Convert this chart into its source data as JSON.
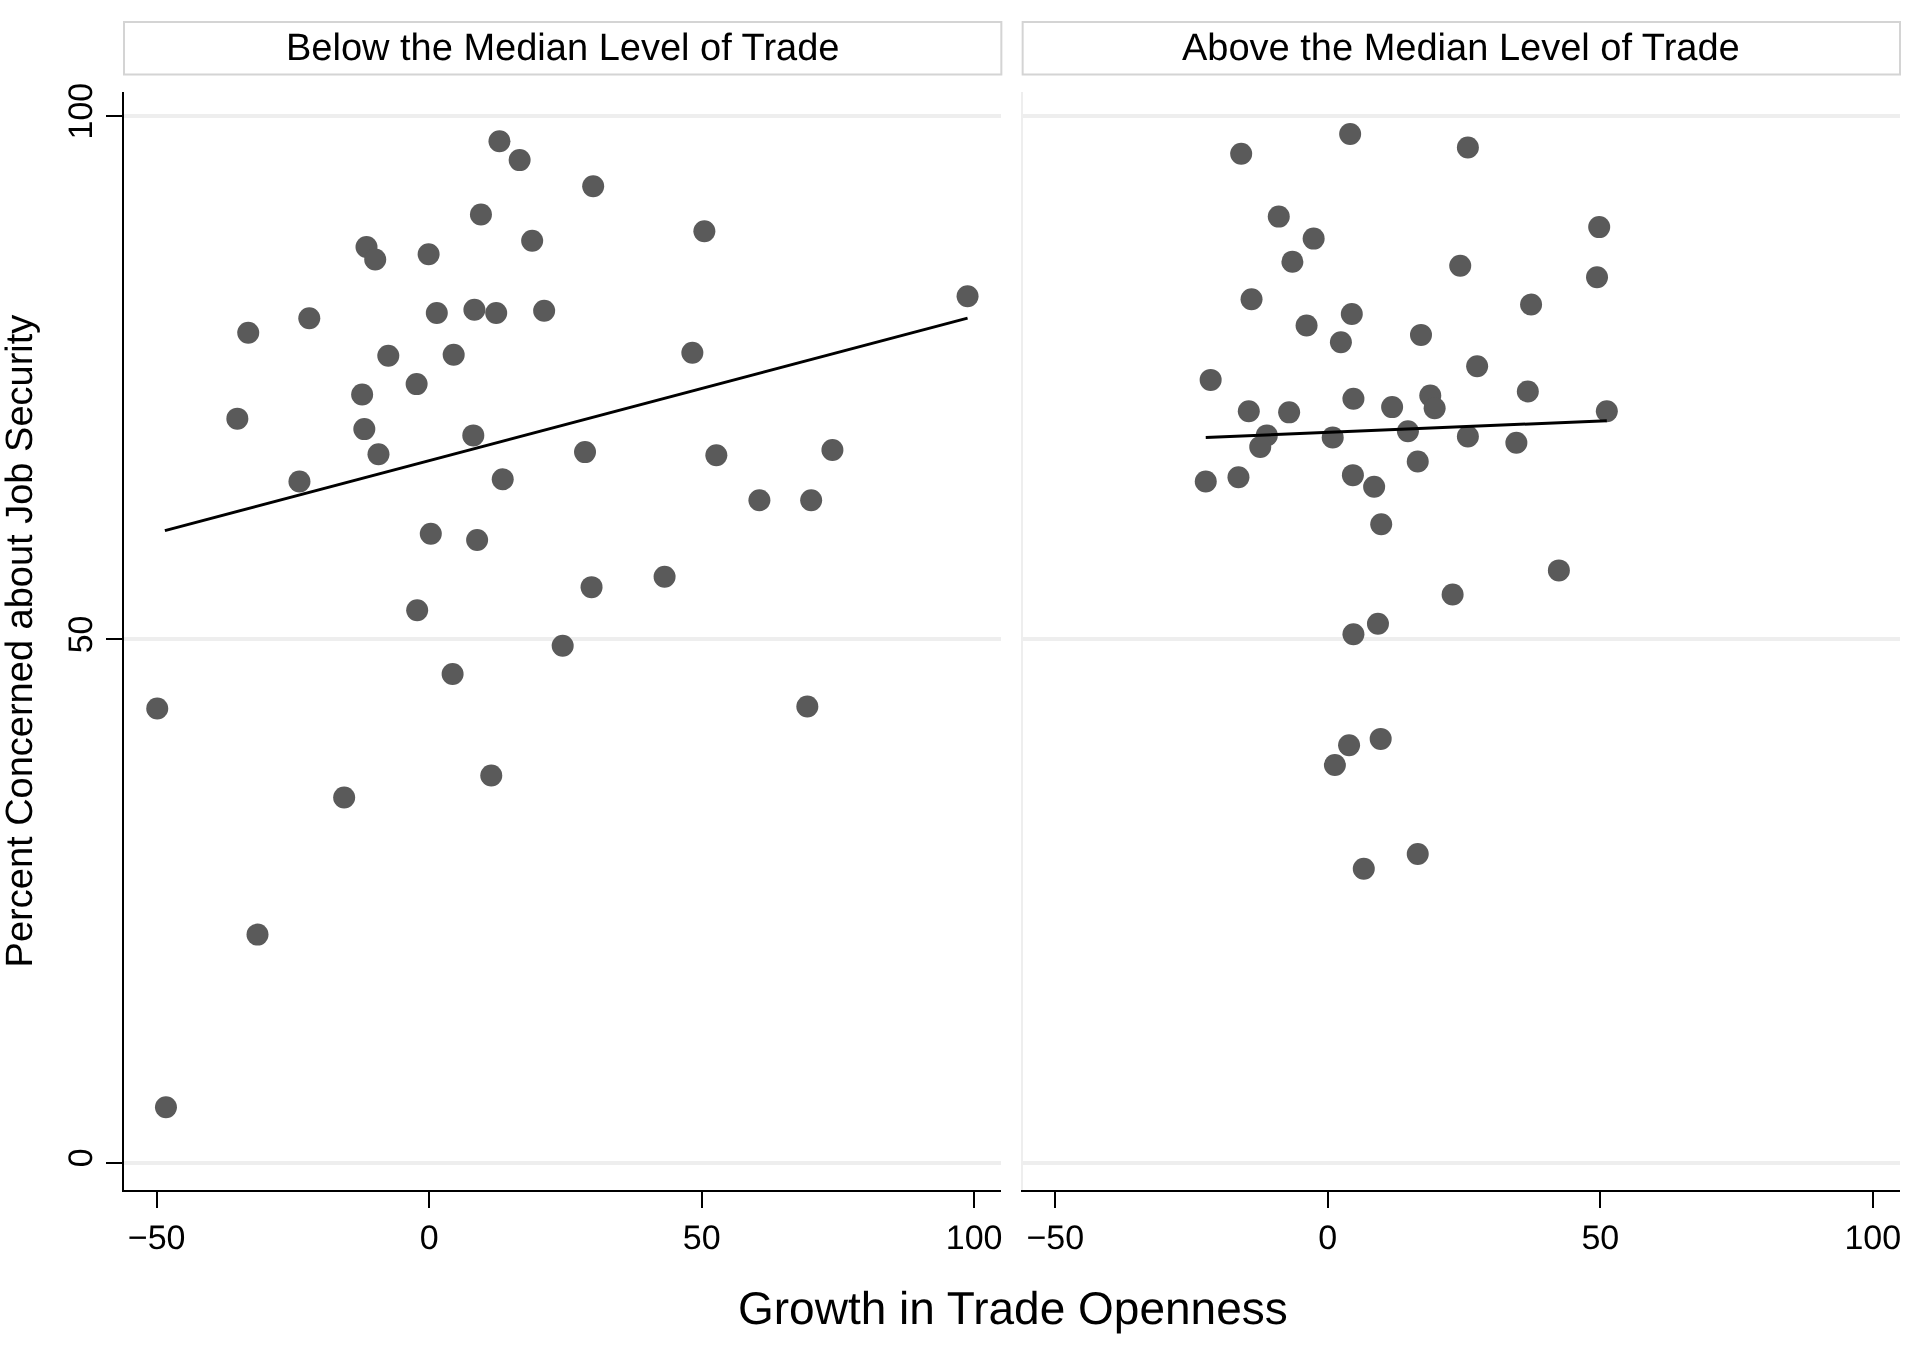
{
  "chart_data": [
    {
      "type": "scatter",
      "title": "Below the Median Level of Trade",
      "xlabel": "Growth in Trade Openness",
      "ylabel": "Percent Concerned about Job Security",
      "xlim": [
        -56,
        105
      ],
      "xticks": [
        -50,
        0,
        50,
        100
      ],
      "ylim": [
        -2.6,
        102.3
      ],
      "yticks": [
        0,
        50,
        100
      ],
      "grid": "y",
      "series": [
        {
          "color": "#5a5a5a",
          "marker": "circle",
          "x": [
            12.9,
            16.6,
            30.1,
            9.5,
            50.5,
            -11.5,
            -9.9,
            -0.1,
            18.9,
            98.8,
            -22.0,
            -33.2,
            1.4,
            8.3,
            12.3,
            21.1,
            -7.5,
            4.5,
            48.3,
            -12.3,
            -2.3,
            -35.2,
            -11.9,
            8.1,
            -9.3,
            -23.8,
            28.6,
            52.7,
            74.0,
            13.5,
            60.6,
            70.1,
            0.3,
            8.8,
            43.2,
            29.8,
            -2.2,
            24.5,
            4.3,
            -49.9,
            69.4,
            11.4,
            -15.6,
            -31.5,
            -48.3
          ],
          "values": [
            97.6,
            95.8,
            93.3,
            90.6,
            89.0,
            87.5,
            86.3,
            86.8,
            88.1,
            82.8,
            80.7,
            79.3,
            81.2,
            81.5,
            81.2,
            81.4,
            77.1,
            77.2,
            77.4,
            73.4,
            74.4,
            71.1,
            70.1,
            69.5,
            67.7,
            65.1,
            67.9,
            67.6,
            68.1,
            65.3,
            63.3,
            63.3,
            60.1,
            59.5,
            56.0,
            55.0,
            52.8,
            49.4,
            46.7,
            43.4,
            43.6,
            37.0,
            34.9,
            21.8,
            5.3
          ]
        },
        {
          "type": "line",
          "color": "#000000",
          "line_style": "solid",
          "x": [
            -48.5,
            98.8
          ],
          "values": [
            60.4,
            80.7
          ]
        }
      ]
    },
    {
      "type": "scatter",
      "title": "Above the Median Level of Trade",
      "xlim": [
        -56,
        105
      ],
      "xticks": [
        -50,
        0,
        50,
        100
      ],
      "ylim": [
        -2.6,
        102.3
      ],
      "yticks": [
        0,
        50,
        100
      ],
      "grid": "y",
      "tick_labels": "x",
      "series": [
        {
          "color": "#5a5a5a",
          "marker": "circle",
          "x": [
            4.1,
            -15.9,
            25.7,
            -9.0,
            -2.6,
            49.8,
            -6.5,
            24.3,
            49.4,
            -14.0,
            37.3,
            4.4,
            -3.9,
            2.4,
            17.1,
            -21.5,
            27.4,
            36.7,
            4.7,
            11.8,
            18.8,
            19.6,
            -14.5,
            -7.1,
            51.2,
            -11.2,
            -12.4,
            0.9,
            14.7,
            25.7,
            34.6,
            16.5,
            -22.4,
            -16.4,
            4.6,
            8.5,
            9.8,
            42.4,
            22.9,
            9.2,
            4.7,
            9.7,
            3.9,
            1.3,
            16.5,
            6.6
          ],
          "values": [
            98.3,
            96.4,
            97.0,
            90.4,
            88.3,
            89.4,
            86.1,
            85.7,
            84.6,
            82.5,
            82.0,
            81.1,
            80.0,
            78.4,
            79.1,
            74.8,
            76.1,
            73.7,
            73.0,
            72.2,
            73.3,
            72.1,
            71.8,
            71.7,
            71.8,
            69.5,
            68.4,
            69.3,
            69.9,
            69.4,
            68.8,
            67.0,
            65.1,
            65.5,
            65.7,
            64.6,
            61.0,
            56.6,
            54.3,
            51.5,
            50.5,
            40.5,
            39.9,
            38.0,
            29.5,
            28.1
          ]
        },
        {
          "type": "line",
          "color": "#000000",
          "line_style": "solid",
          "x": [
            -22.4,
            51.2
          ],
          "values": [
            69.3,
            70.9
          ]
        }
      ]
    }
  ]
}
